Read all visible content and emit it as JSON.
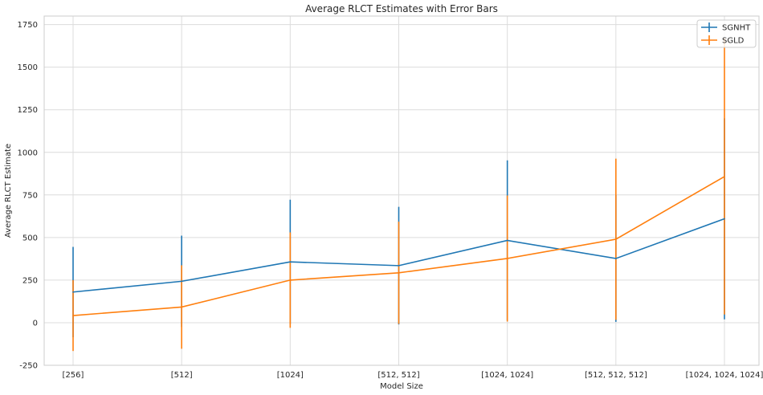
{
  "chart_data": {
    "type": "line",
    "title": "Average RLCT Estimates with Error Bars",
    "xlabel": "Model Size",
    "ylabel": "Average RLCT Estimate",
    "categories": [
      "[256]",
      "[512]",
      "[1024]",
      "[512, 512]",
      "[1024, 1024]",
      "[512, 512, 512]",
      "[1024, 1024, 1024]"
    ],
    "ylim": [
      -250,
      1800
    ],
    "yticks": [
      -250,
      0,
      250,
      500,
      750,
      1000,
      1250,
      1500,
      1750
    ],
    "grid": true,
    "legend_position": "top-right",
    "series": [
      {
        "name": "SGNHT",
        "color": "#1f77b4",
        "values": [
          180,
          243,
          357,
          335,
          483,
          377,
          610
        ],
        "errors": [
          265,
          268,
          365,
          345,
          470,
          372,
          590
        ]
      },
      {
        "name": "SGLD",
        "color": "#ff7f0e",
        "values": [
          42,
          92,
          250,
          293,
          377,
          490,
          858
        ],
        "errors": [
          208,
          245,
          280,
          300,
          370,
          473,
          810
        ]
      }
    ]
  }
}
